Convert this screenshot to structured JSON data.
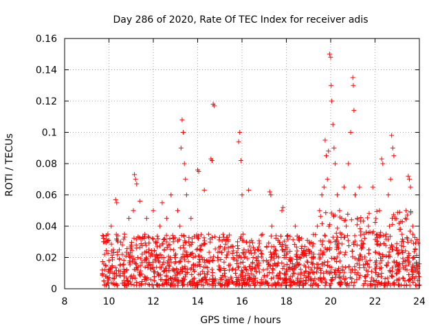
{
  "chart_data": {
    "type": "scatter",
    "title": "Day 286 of 2020, Rate Of TEC Index for receiver adis",
    "xlabel": "GPS time / hours",
    "ylabel": "ROTI / TECUs",
    "xlim": [
      8,
      24
    ],
    "ylim": [
      0,
      0.16
    ],
    "xticks": [
      8,
      10,
      12,
      14,
      16,
      18,
      20,
      22,
      24
    ],
    "yticks": [
      0,
      0.02,
      0.04,
      0.06,
      0.08,
      0.1,
      0.12,
      0.14,
      0.16
    ],
    "xtick_labels": [
      "8",
      "10",
      "12",
      "14",
      "16",
      "18",
      "20",
      "22",
      "24"
    ],
    "ytick_labels": [
      "0",
      "0.02",
      "0.04",
      "0.06",
      "0.08",
      "0.1",
      "0.12",
      "0.14",
      "0.16"
    ],
    "grid": true,
    "marker": "+",
    "color": "#ff0000",
    "series": [
      {
        "name": "ROTI",
        "points": [
          [
            9.7,
            0.012
          ],
          [
            9.75,
            0.03
          ],
          [
            9.8,
            0.022
          ],
          [
            9.85,
            0.015
          ],
          [
            9.9,
            0.008
          ],
          [
            9.95,
            0.035
          ],
          [
            10.0,
            0.018
          ],
          [
            10.05,
            0.012
          ],
          [
            10.1,
            0.04
          ],
          [
            10.15,
            0.02
          ],
          [
            10.2,
            0.025
          ],
          [
            10.25,
            0.01
          ],
          [
            10.3,
            0.057
          ],
          [
            10.35,
            0.055
          ],
          [
            10.4,
            0.03
          ],
          [
            10.5,
            0.015
          ],
          [
            10.6,
            0.022
          ],
          [
            10.7,
            0.035
          ],
          [
            10.8,
            0.012
          ],
          [
            10.9,
            0.045
          ],
          [
            11.0,
            0.028
          ],
          [
            11.1,
            0.05
          ],
          [
            11.15,
            0.073
          ],
          [
            11.2,
            0.07
          ],
          [
            11.25,
            0.067
          ],
          [
            11.3,
            0.02
          ],
          [
            11.4,
            0.056
          ],
          [
            11.5,
            0.032
          ],
          [
            11.6,
            0.018
          ],
          [
            11.7,
            0.045
          ],
          [
            11.8,
            0.025
          ],
          [
            11.9,
            0.015
          ],
          [
            12.0,
            0.05
          ],
          [
            12.1,
            0.03
          ],
          [
            12.2,
            0.02
          ],
          [
            12.3,
            0.04
          ],
          [
            12.4,
            0.055
          ],
          [
            12.5,
            0.025
          ],
          [
            12.6,
            0.045
          ],
          [
            12.7,
            0.015
          ],
          [
            12.8,
            0.06
          ],
          [
            12.9,
            0.03
          ],
          [
            13.0,
            0.02
          ],
          [
            13.1,
            0.05
          ],
          [
            13.2,
            0.04
          ],
          [
            13.25,
            0.09
          ],
          [
            13.3,
            0.108
          ],
          [
            13.35,
            0.1
          ],
          [
            13.4,
            0.08
          ],
          [
            13.45,
            0.07
          ],
          [
            13.5,
            0.06
          ],
          [
            13.6,
            0.03
          ],
          [
            13.7,
            0.045
          ],
          [
            13.8,
            0.02
          ],
          [
            13.9,
            0.015
          ],
          [
            14.0,
            0.076
          ],
          [
            14.05,
            0.075
          ],
          [
            14.1,
            0.025
          ],
          [
            14.3,
            0.063
          ],
          [
            14.4,
            0.018
          ],
          [
            14.6,
            0.083
          ],
          [
            14.65,
            0.082
          ],
          [
            14.7,
            0.118
          ],
          [
            14.75,
            0.117
          ],
          [
            14.9,
            0.02
          ],
          [
            15.0,
            0.012
          ],
          [
            15.2,
            0.025
          ],
          [
            15.4,
            0.015
          ],
          [
            15.6,
            0.02
          ],
          [
            15.8,
            0.03
          ],
          [
            15.85,
            0.094
          ],
          [
            15.9,
            0.1
          ],
          [
            15.95,
            0.082
          ],
          [
            16.0,
            0.06
          ],
          [
            16.05,
            0.035
          ],
          [
            16.1,
            0.02
          ],
          [
            16.2,
            0.012
          ],
          [
            16.3,
            0.063
          ],
          [
            16.5,
            0.02
          ],
          [
            16.7,
            0.015
          ],
          [
            16.9,
            0.022
          ],
          [
            17.1,
            0.018
          ],
          [
            17.25,
            0.062
          ],
          [
            17.3,
            0.06
          ],
          [
            17.35,
            0.04
          ],
          [
            17.5,
            0.025
          ],
          [
            17.6,
            0.015
          ],
          [
            17.8,
            0.05
          ],
          [
            17.85,
            0.052
          ],
          [
            17.9,
            0.02
          ],
          [
            18.0,
            0.012
          ],
          [
            18.2,
            0.018
          ],
          [
            18.4,
            0.04
          ],
          [
            18.6,
            0.02
          ],
          [
            18.8,
            0.015
          ],
          [
            19.0,
            0.025
          ],
          [
            19.2,
            0.02
          ],
          [
            19.4,
            0.04
          ],
          [
            19.5,
            0.05
          ],
          [
            19.6,
            0.06
          ],
          [
            19.7,
            0.065
          ],
          [
            19.75,
            0.095
          ],
          [
            19.8,
            0.085
          ],
          [
            19.85,
            0.07
          ],
          [
            19.9,
            0.088
          ],
          [
            19.95,
            0.15
          ],
          [
            20.0,
            0.148
          ],
          [
            20.02,
            0.13
          ],
          [
            20.05,
            0.12
          ],
          [
            20.1,
            0.105
          ],
          [
            20.15,
            0.09
          ],
          [
            20.2,
            0.08
          ],
          [
            20.3,
            0.06
          ],
          [
            20.4,
            0.05
          ],
          [
            20.5,
            0.045
          ],
          [
            20.6,
            0.065
          ],
          [
            20.7,
            0.04
          ],
          [
            20.8,
            0.08
          ],
          [
            20.9,
            0.1
          ],
          [
            21.0,
            0.135
          ],
          [
            21.02,
            0.13
          ],
          [
            21.05,
            0.114
          ],
          [
            21.1,
            0.06
          ],
          [
            21.2,
            0.045
          ],
          [
            21.3,
            0.065
          ],
          [
            21.5,
            0.035
          ],
          [
            21.7,
            0.04
          ],
          [
            21.9,
            0.065
          ],
          [
            22.1,
            0.03
          ],
          [
            22.2,
            0.05
          ],
          [
            22.3,
            0.083
          ],
          [
            22.35,
            0.08
          ],
          [
            22.5,
            0.035
          ],
          [
            22.6,
            0.06
          ],
          [
            22.7,
            0.07
          ],
          [
            22.75,
            0.098
          ],
          [
            22.8,
            0.09
          ],
          [
            22.85,
            0.085
          ],
          [
            22.9,
            0.045
          ],
          [
            23.0,
            0.025
          ],
          [
            23.2,
            0.03
          ],
          [
            23.4,
            0.05
          ],
          [
            23.5,
            0.072
          ],
          [
            23.55,
            0.07
          ],
          [
            23.6,
            0.065
          ],
          [
            23.7,
            0.04
          ],
          [
            23.8,
            0.02
          ],
          [
            23.9,
            0.015
          ],
          [
            23.95,
            0.01
          ]
        ],
        "background_band": {
          "x_start": 9.7,
          "x_end": 24.0,
          "y_min": 0.002,
          "y_max": 0.035,
          "density": "dense"
        }
      }
    ]
  }
}
